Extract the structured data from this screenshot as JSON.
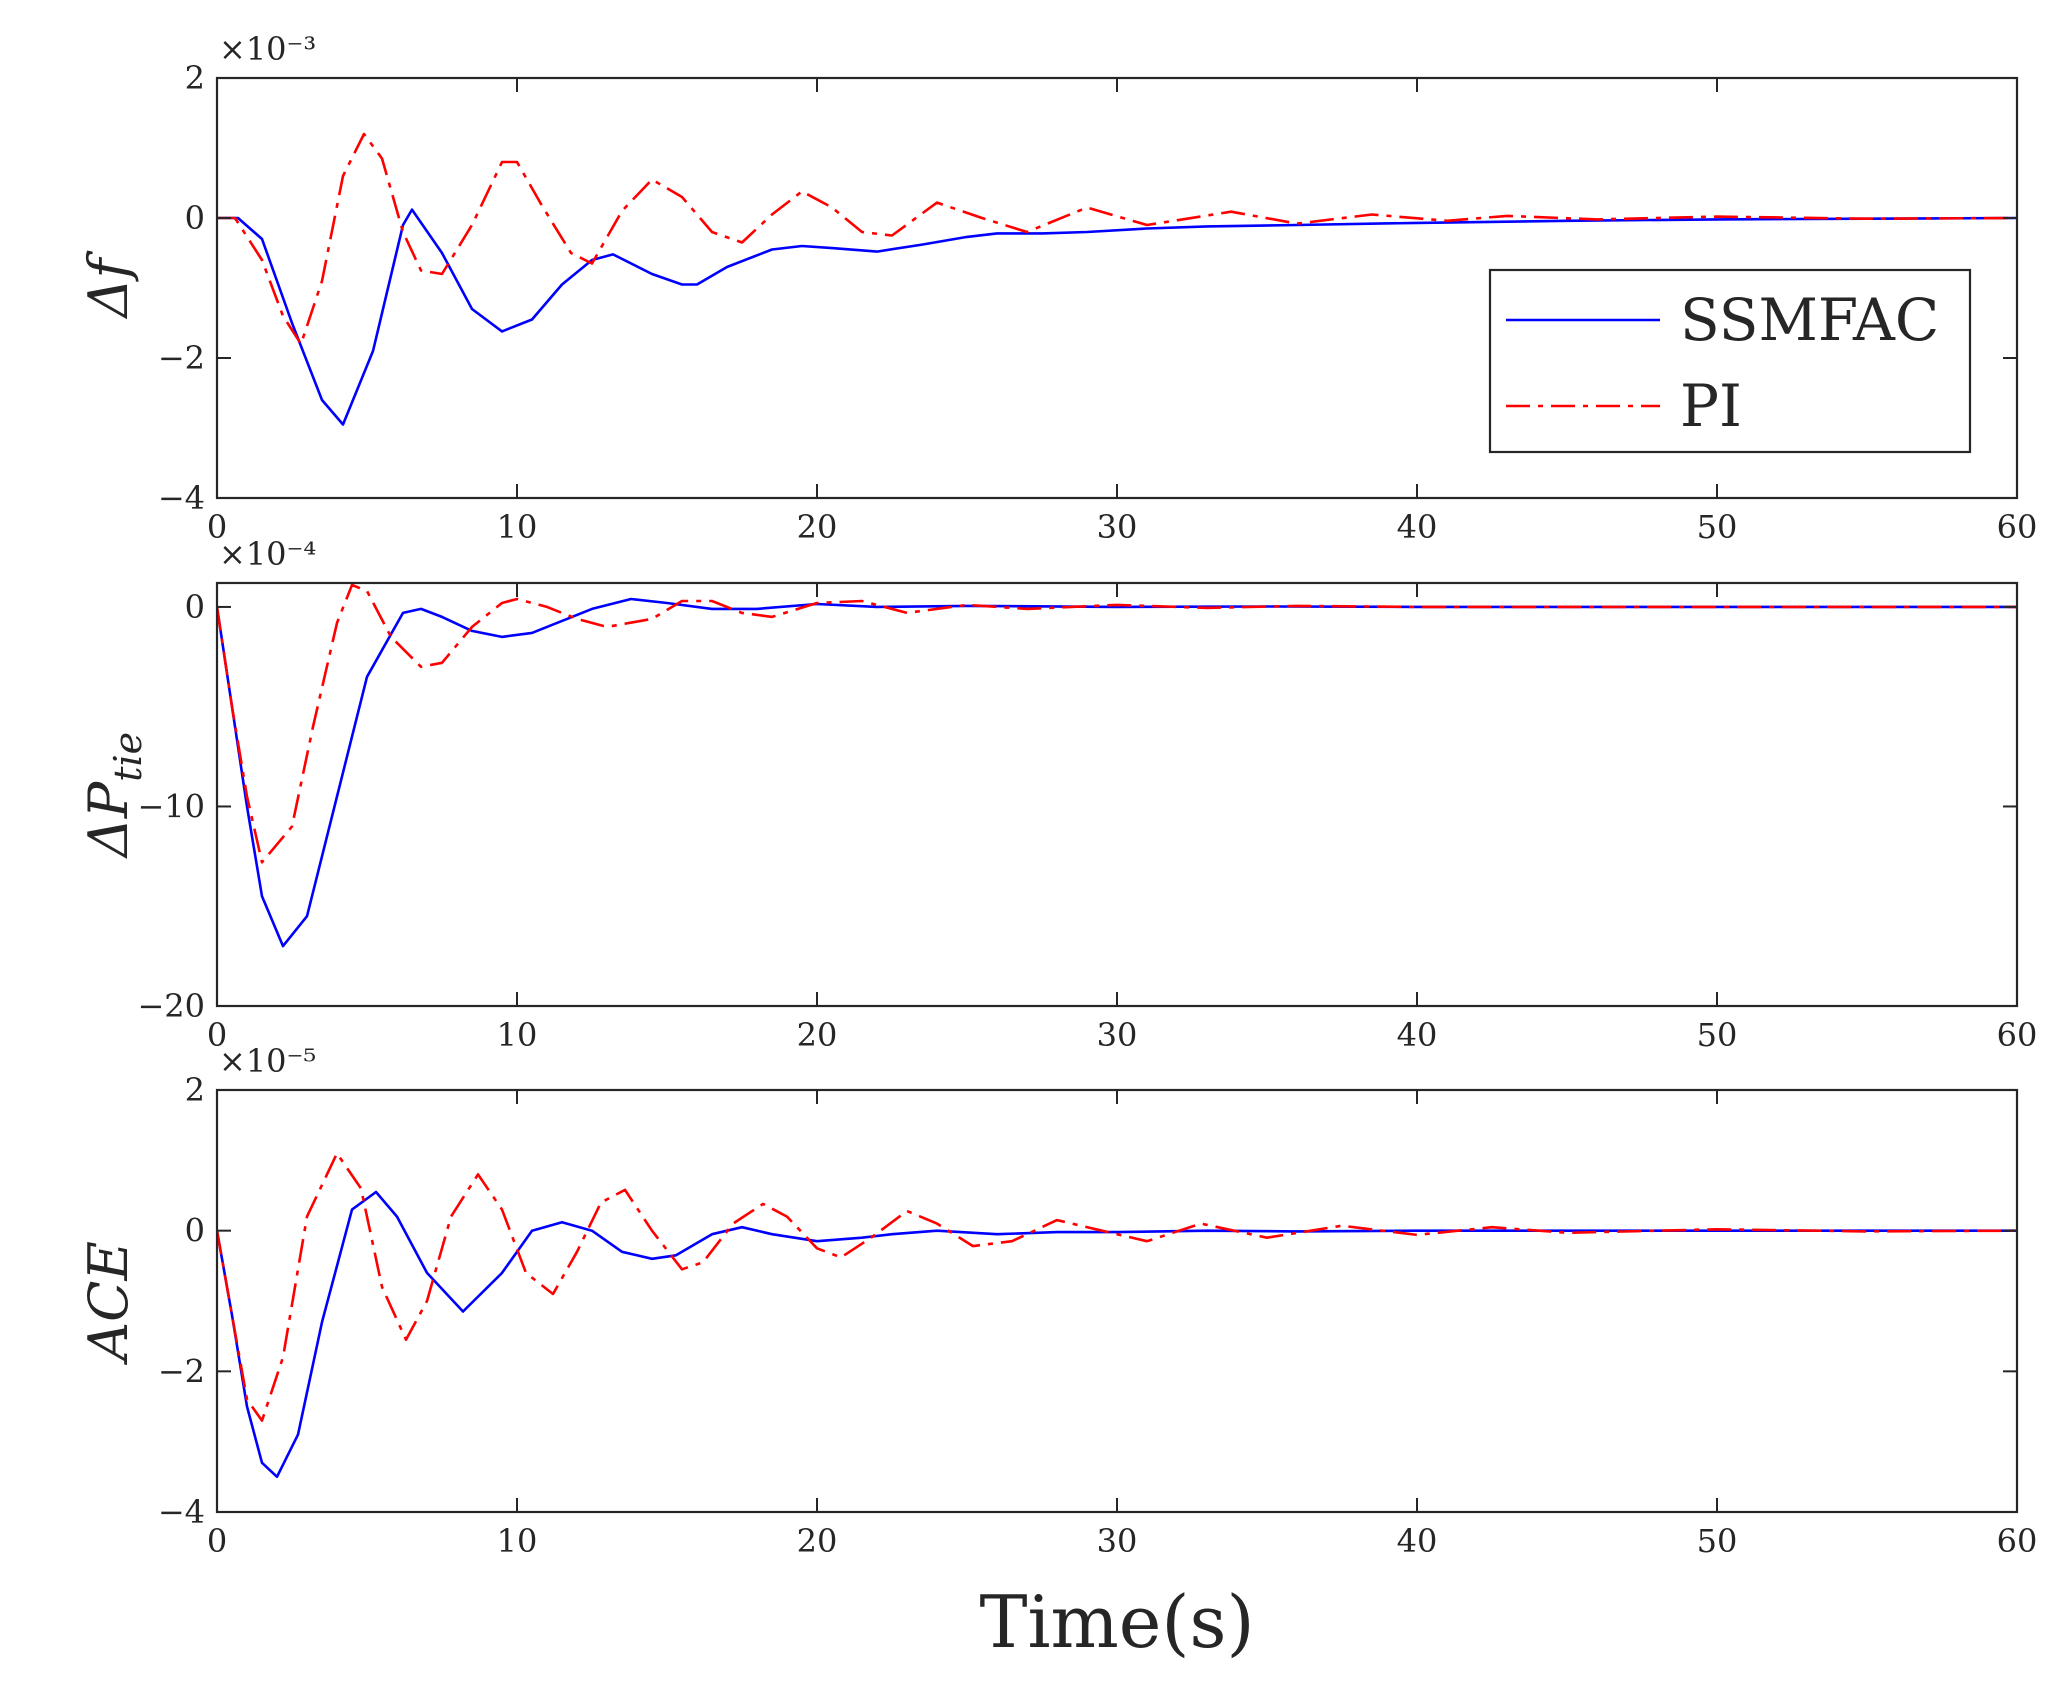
{
  "chart_data": [
    {
      "type": "line",
      "ylabel": "Δf",
      "exponent": "×10⁻³",
      "xlim": [
        0,
        60
      ],
      "ylim": [
        -4,
        2
      ],
      "xticks": [
        "0",
        "10",
        "20",
        "30",
        "40",
        "50",
        "60"
      ],
      "yticks": [
        "2",
        "0",
        "−2",
        "−4"
      ],
      "ytick_values": [
        2,
        0,
        -2,
        -4
      ],
      "legend": {
        "location": "right",
        "entries": [
          "SSMFAC",
          "PI"
        ]
      },
      "series": [
        {
          "name": "SSMFAC",
          "color": "#0000ff",
          "style": "solid",
          "x": [
            0,
            0.7,
            1.5,
            2.5,
            3.5,
            4.2,
            5.2,
            6.2,
            6.5,
            7.5,
            8.5,
            9.5,
            10.5,
            11.5,
            12.5,
            13.2,
            14.5,
            15.5,
            16.0,
            17.0,
            18.5,
            19.5,
            20.5,
            22.0,
            23.5,
            25.0,
            26.0,
            27.5,
            29.0,
            31.0,
            33.0,
            36.0,
            40.0,
            45.0,
            50.0,
            55.0,
            60.0
          ],
          "y": [
            0,
            0,
            -0.3,
            -1.5,
            -2.6,
            -2.95,
            -1.9,
            -0.1,
            0.12,
            -0.5,
            -1.3,
            -1.62,
            -1.45,
            -0.95,
            -0.6,
            -0.52,
            -0.8,
            -0.95,
            -0.95,
            -0.7,
            -0.45,
            -0.4,
            -0.43,
            -0.48,
            -0.38,
            -0.27,
            -0.22,
            -0.22,
            -0.2,
            -0.15,
            -0.12,
            -0.1,
            -0.07,
            -0.04,
            -0.02,
            -0.01,
            0
          ]
        },
        {
          "name": "PI",
          "color": "#ff0000",
          "style": "dashdot",
          "x": [
            0,
            0.6,
            1.5,
            2.2,
            2.8,
            3.5,
            4.2,
            4.9,
            5.5,
            6.2,
            6.8,
            7.5,
            8.5,
            9.5,
            10.0,
            10.8,
            11.8,
            12.5,
            13.5,
            14.5,
            15.5,
            16.5,
            17.5,
            18.5,
            19.5,
            20.5,
            21.5,
            22.5,
            24.0,
            25.5,
            27.0,
            29.0,
            31.0,
            33.8,
            36.0,
            38.5,
            41.0,
            43.0,
            46.0,
            50.0,
            55.0,
            60.0
          ],
          "y": [
            0,
            0,
            -0.6,
            -1.4,
            -1.8,
            -0.9,
            0.6,
            1.2,
            0.85,
            -0.2,
            -0.75,
            -0.8,
            -0.1,
            0.8,
            0.8,
            0.2,
            -0.5,
            -0.65,
            0.1,
            0.55,
            0.3,
            -0.2,
            -0.35,
            0.05,
            0.38,
            0.15,
            -0.2,
            -0.25,
            0.22,
            0.0,
            -0.2,
            0.15,
            -0.1,
            0.09,
            -0.08,
            0.05,
            -0.04,
            0.03,
            -0.02,
            0.02,
            -0.01,
            0
          ]
        }
      ]
    },
    {
      "type": "line",
      "ylabel": "ΔP",
      "ylabel_sub": "tie",
      "exponent": "×10⁻⁴",
      "xlim": [
        0,
        60
      ],
      "ylim": [
        -20,
        1.2
      ],
      "xticks": [
        "0",
        "10",
        "20",
        "30",
        "40",
        "50",
        "60"
      ],
      "yticks": [
        "0",
        "−10",
        "−20"
      ],
      "ytick_values": [
        0,
        -10,
        -20
      ],
      "series": [
        {
          "name": "SSMFAC",
          "color": "#0000ff",
          "style": "solid",
          "x": [
            0,
            0.5,
            1.0,
            1.5,
            2.2,
            3.0,
            4.0,
            5.0,
            6.2,
            6.8,
            7.5,
            8.5,
            9.5,
            10.5,
            11.5,
            12.5,
            13.8,
            15.0,
            16.5,
            18.0,
            20.0,
            22.0,
            25.0,
            30.0,
            35.0,
            40.0,
            50.0,
            60.0
          ],
          "y": [
            0,
            -5,
            -10,
            -14.5,
            -17.0,
            -15.5,
            -9.5,
            -3.5,
            -0.3,
            -0.1,
            -0.5,
            -1.2,
            -1.5,
            -1.3,
            -0.7,
            -0.1,
            0.4,
            0.2,
            -0.1,
            -0.1,
            0.15,
            0.0,
            0.05,
            0.0,
            0.02,
            0.0,
            0.0,
            0.0
          ]
        },
        {
          "name": "PI",
          "color": "#ff0000",
          "style": "dashdot",
          "x": [
            0,
            0.5,
            1.0,
            1.5,
            2.5,
            3.2,
            4.0,
            4.5,
            5.0,
            5.8,
            6.8,
            7.5,
            8.5,
            9.5,
            10.0,
            11.0,
            12.0,
            13.0,
            14.5,
            15.5,
            16.5,
            17.5,
            18.5,
            20.0,
            21.5,
            23.0,
            25.0,
            27.0,
            30.0,
            33.0,
            36.0,
            40.0,
            45.0,
            50.0,
            60.0
          ],
          "y": [
            0,
            -5,
            -9.5,
            -12.8,
            -11.0,
            -6.0,
            -0.8,
            1.1,
            0.8,
            -1.5,
            -3.0,
            -2.8,
            -1.0,
            0.2,
            0.4,
            0.0,
            -0.6,
            -1.0,
            -0.6,
            0.3,
            0.3,
            -0.3,
            -0.5,
            0.2,
            0.3,
            -0.3,
            0.1,
            -0.1,
            0.1,
            -0.05,
            0.05,
            0.0,
            0.0,
            0.0,
            0.0
          ]
        }
      ]
    },
    {
      "type": "line",
      "ylabel": "ACE",
      "exponent": "×10⁻⁵",
      "xlim": [
        0,
        60
      ],
      "ylim": [
        -4,
        2
      ],
      "xticks": [
        "0",
        "10",
        "20",
        "30",
        "40",
        "50",
        "60"
      ],
      "yticks": [
        "2",
        "0",
        "−2",
        "−4"
      ],
      "ytick_values": [
        2,
        0,
        -2,
        -4
      ],
      "xlabel": "Time(s)",
      "series": [
        {
          "name": "SSMFAC",
          "color": "#0000ff",
          "style": "solid",
          "x": [
            0,
            0.5,
            1.0,
            1.5,
            2.0,
            2.7,
            3.5,
            4.5,
            5.3,
            6.0,
            7.0,
            8.2,
            9.5,
            10.5,
            11.5,
            12.5,
            13.5,
            14.5,
            15.3,
            16.5,
            17.5,
            18.5,
            20.0,
            21.5,
            22.5,
            24.0,
            26.0,
            28.0,
            30.0,
            33.0,
            36.0,
            40.0,
            45.0,
            50.0,
            60.0
          ],
          "y": [
            0,
            -1.2,
            -2.5,
            -3.3,
            -3.5,
            -2.9,
            -1.3,
            0.3,
            0.55,
            0.2,
            -0.6,
            -1.15,
            -0.6,
            0.0,
            0.12,
            0.0,
            -0.3,
            -0.4,
            -0.35,
            -0.05,
            0.05,
            -0.05,
            -0.15,
            -0.1,
            -0.05,
            0.0,
            -0.05,
            -0.02,
            -0.02,
            0.0,
            -0.01,
            0.0,
            0.0,
            0.0,
            0.0
          ]
        },
        {
          "name": "PI",
          "color": "#ff0000",
          "style": "dashdot",
          "x": [
            0,
            0.5,
            1.0,
            1.5,
            2.2,
            3.0,
            4.0,
            4.8,
            5.5,
            6.3,
            7.0,
            7.8,
            8.7,
            9.5,
            10.3,
            11.2,
            12.0,
            12.8,
            13.6,
            14.5,
            15.5,
            16.2,
            17.2,
            18.2,
            19.0,
            20.0,
            20.8,
            21.8,
            23.0,
            24.0,
            25.2,
            26.5,
            28.0,
            29.5,
            31.0,
            32.8,
            35.0,
            37.5,
            40.0,
            42.5,
            45.0,
            50.0,
            55.0,
            60.0
          ],
          "y": [
            0,
            -1.2,
            -2.4,
            -2.7,
            -1.8,
            0.2,
            1.1,
            0.6,
            -0.8,
            -1.55,
            -1.0,
            0.2,
            0.8,
            0.3,
            -0.6,
            -0.9,
            -0.3,
            0.4,
            0.58,
            0.0,
            -0.55,
            -0.45,
            0.1,
            0.38,
            0.2,
            -0.25,
            -0.38,
            -0.1,
            0.28,
            0.1,
            -0.22,
            -0.15,
            0.15,
            0.0,
            -0.15,
            0.1,
            -0.1,
            0.07,
            -0.06,
            0.05,
            -0.03,
            0.02,
            -0.01,
            0.0
          ]
        }
      ]
    }
  ]
}
